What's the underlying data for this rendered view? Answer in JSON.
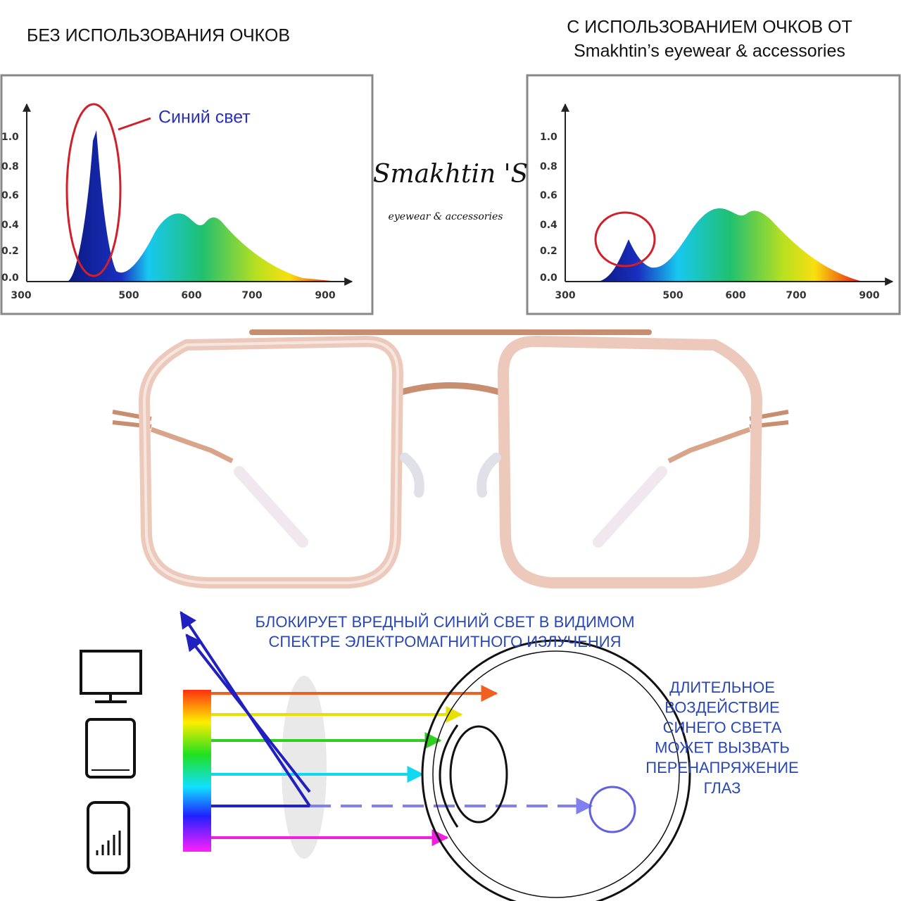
{
  "header": {
    "left_title": "БЕЗ ИСПОЛЬЗОВАНИЯ ОЧКОВ",
    "right_title_line1": "С ИСПОЛЬЗОВАНИЕМ ОЧКОВ ОТ",
    "right_title_line2": "Smakhtin’s eyewear & accessories"
  },
  "logo": {
    "name": "Smakhtin 'S",
    "tagline": "eyewear & accessories"
  },
  "spectra": [
    {
      "annotation": "Синий свет",
      "yticks": [
        "1.0",
        "0.8",
        "0.6",
        "0.4",
        "0.2",
        "0.0"
      ],
      "xticks": [
        "300",
        "500",
        "600",
        "700",
        "900"
      ]
    },
    {
      "yticks": [
        "1.0",
        "0.8",
        "0.6",
        "0.4",
        "0.2",
        "0.0"
      ],
      "xticks": [
        "300",
        "500",
        "600",
        "700",
        "900"
      ]
    }
  ],
  "diagram": {
    "caption_lines": [
      "БЛОКИРУЕТ ВРЕДНЫЙ СИНИЙ СВЕТ В ВИДИМОМ",
      "СПЕКТРЕ ЭЛЕКТРОМАГНИТНОГО ИЗЛУЧЕНИЯ"
    ],
    "warning_lines": [
      "ДЛИТЕЛЬНОЕ",
      "ВОЗДЕЙСТВИЕ",
      "СИНЕГО СВЕТА",
      "МОЖЕТ ВЫЗВАТЬ",
      "ПЕРЕНАПРЯЖЕНИЕ",
      "ГЛАЗ"
    ]
  }
}
